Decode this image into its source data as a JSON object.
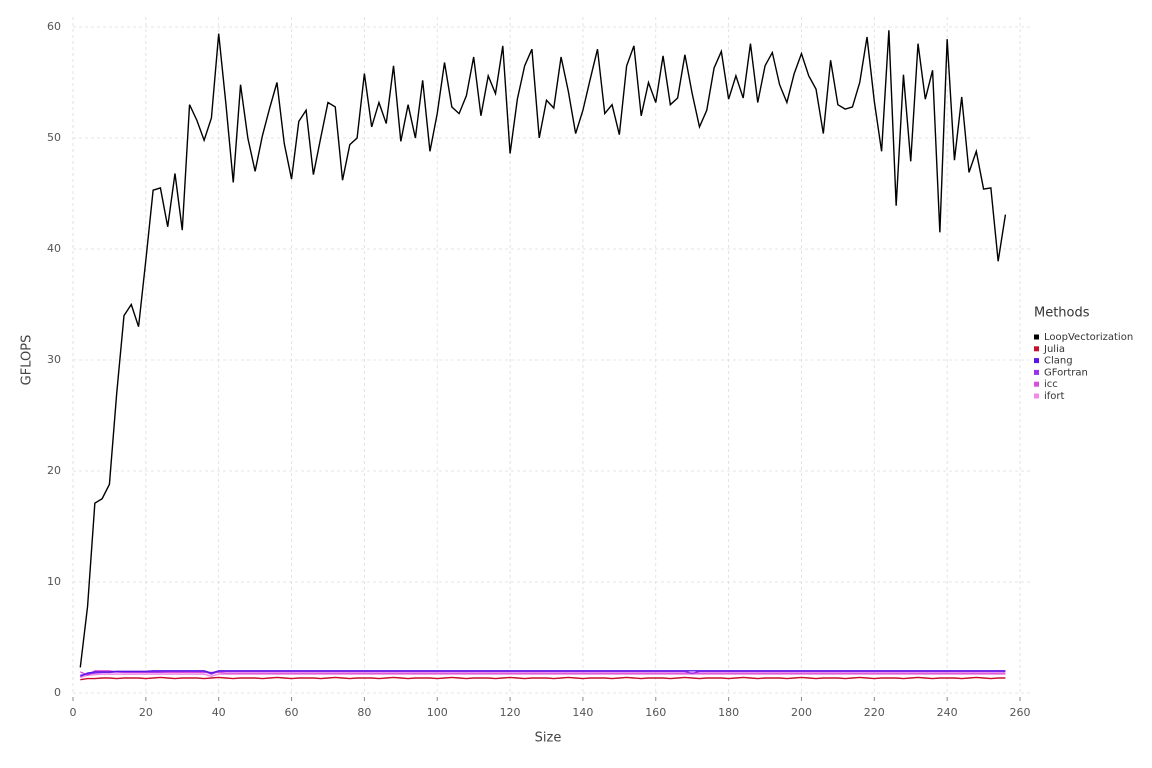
{
  "chart_data": {
    "type": "line",
    "x_label": "Size",
    "y_label": "GFLOPS",
    "legend_title": "Methods",
    "legend_position": "right",
    "grid": true,
    "xlim": [
      0,
      260
    ],
    "xticks": [
      0,
      20,
      40,
      60,
      80,
      100,
      120,
      140,
      160,
      180,
      200,
      220,
      240,
      260
    ],
    "ylim": [
      0,
      60
    ],
    "yticks": [
      0,
      10,
      20,
      30,
      40,
      50,
      60
    ],
    "x": [
      2,
      4,
      6,
      8,
      10,
      12,
      14,
      16,
      18,
      20,
      22,
      24,
      26,
      28,
      30,
      32,
      34,
      36,
      38,
      40,
      42,
      44,
      46,
      48,
      50,
      52,
      54,
      56,
      58,
      60,
      62,
      64,
      66,
      68,
      70,
      72,
      74,
      76,
      78,
      80,
      82,
      84,
      86,
      88,
      90,
      92,
      94,
      96,
      98,
      100,
      102,
      104,
      106,
      108,
      110,
      112,
      114,
      116,
      118,
      120,
      122,
      124,
      126,
      128,
      130,
      132,
      134,
      136,
      138,
      140,
      142,
      144,
      146,
      148,
      150,
      152,
      154,
      156,
      158,
      160,
      162,
      164,
      166,
      168,
      170,
      172,
      174,
      176,
      178,
      180,
      182,
      184,
      186,
      188,
      190,
      192,
      194,
      196,
      198,
      200,
      202,
      204,
      206,
      208,
      210,
      212,
      214,
      216,
      218,
      220,
      222,
      224,
      226,
      228,
      230,
      232,
      234,
      236,
      238,
      240,
      242,
      244,
      246,
      248,
      250,
      252,
      254,
      256
    ],
    "series": [
      {
        "name": "LoopVectorization",
        "color": "#000000",
        "values": [
          2.3,
          7.8,
          17.1,
          17.5,
          18.8,
          27,
          34,
          35,
          33,
          39,
          45.3,
          45.5,
          42,
          46.8,
          41.7,
          53,
          51.6,
          49.8,
          51.8,
          59.4,
          53,
          46,
          54.8,
          50,
          47,
          50.2,
          52.7,
          55,
          49.5,
          46.3,
          51.5,
          52.5,
          46.7,
          50,
          53.2,
          52.8,
          46.2,
          49.4,
          50,
          55.8,
          51,
          53.2,
          51.3,
          56.5,
          49.7,
          53,
          50,
          55.2,
          48.8,
          52.2,
          56.8,
          52.8,
          52.2,
          53.8,
          57.3,
          52,
          55.6,
          54,
          58.3,
          48.6,
          53.5,
          56.5,
          58,
          50,
          53.4,
          52.7,
          57.3,
          54.2,
          50.4,
          52.5,
          55.3,
          58,
          52.2,
          53,
          50.3,
          56.5,
          58.3,
          52,
          55,
          53.2,
          57.4,
          53,
          53.6,
          57.5,
          54,
          51,
          52.5,
          56.3,
          57.8,
          53.5,
          55.6,
          53.6,
          58.5,
          53.2,
          56.5,
          57.7,
          54.8,
          53.2,
          55.8,
          57.6,
          55.6,
          54.4,
          50.4,
          57,
          53,
          52.6,
          52.8,
          55,
          59.1,
          53.3,
          48.8,
          59.7,
          43.9,
          55.7,
          47.9,
          58.5,
          53.5,
          56.1,
          41.5,
          58.9,
          48,
          53.7,
          46.9,
          48.8,
          45.4,
          45.5,
          38.9,
          43.1
        ]
      },
      {
        "name": "Julia",
        "color": "#c8102e",
        "values": [
          1.2,
          1.3,
          1.3,
          1.35,
          1.35,
          1.3,
          1.35,
          1.35,
          1.35,
          1.3,
          1.35,
          1.4,
          1.35,
          1.3,
          1.35,
          1.35,
          1.35,
          1.3,
          1.35,
          1.4,
          1.35,
          1.3,
          1.35,
          1.35,
          1.35,
          1.3,
          1.35,
          1.4,
          1.35,
          1.3,
          1.35,
          1.35,
          1.35,
          1.3,
          1.35,
          1.4,
          1.35,
          1.3,
          1.35,
          1.35,
          1.35,
          1.3,
          1.35,
          1.4,
          1.35,
          1.3,
          1.35,
          1.35,
          1.35,
          1.3,
          1.35,
          1.4,
          1.35,
          1.3,
          1.35,
          1.35,
          1.35,
          1.3,
          1.35,
          1.4,
          1.35,
          1.3,
          1.35,
          1.35,
          1.35,
          1.3,
          1.35,
          1.4,
          1.35,
          1.3,
          1.35,
          1.35,
          1.35,
          1.3,
          1.35,
          1.4,
          1.35,
          1.3,
          1.35,
          1.35,
          1.35,
          1.3,
          1.35,
          1.4,
          1.35,
          1.3,
          1.35,
          1.35,
          1.35,
          1.3,
          1.35,
          1.4,
          1.35,
          1.3,
          1.35,
          1.35,
          1.35,
          1.3,
          1.35,
          1.4,
          1.35,
          1.3,
          1.35,
          1.35,
          1.35,
          1.3,
          1.35,
          1.4,
          1.35,
          1.3,
          1.35,
          1.35,
          1.35,
          1.3,
          1.35,
          1.4,
          1.35,
          1.3,
          1.35,
          1.35,
          1.35,
          1.3,
          1.35,
          1.4,
          1.35,
          1.3,
          1.35,
          1.35
        ]
      },
      {
        "name": "Clang",
        "color": "#5b16e6",
        "values": [
          1.5,
          1.8,
          1.9,
          1.9,
          1.9,
          1.95,
          1.95,
          1.95,
          1.95,
          1.95,
          2,
          2,
          2,
          2,
          2,
          2,
          2,
          2,
          1.8,
          2,
          2,
          2,
          2,
          2,
          2,
          2,
          2,
          2,
          2,
          2,
          2,
          2,
          2,
          2,
          2,
          2,
          2,
          2,
          2,
          2,
          2,
          2,
          2,
          2,
          2,
          2,
          2,
          2,
          2,
          2,
          2,
          2,
          2,
          2,
          2,
          2,
          2,
          2,
          2,
          2,
          2,
          2,
          2,
          2,
          2,
          2,
          2,
          2,
          2,
          2,
          2,
          2,
          2,
          2,
          2,
          2,
          2,
          2,
          2,
          2,
          2,
          2,
          2,
          2,
          2,
          2,
          2,
          2,
          2,
          2,
          2,
          2,
          2,
          2,
          2,
          2,
          2,
          2,
          2,
          2,
          2,
          2,
          2,
          2,
          2,
          2,
          2,
          2,
          2,
          2,
          2,
          2,
          2,
          2,
          2,
          2,
          2,
          2,
          2,
          2,
          2,
          2,
          2,
          2,
          2,
          2,
          2,
          2
        ]
      },
      {
        "name": "GFortran",
        "color": "#9a32f0",
        "values": [
          1.6,
          1.7,
          1.8,
          1.85,
          1.85,
          1.9,
          1.9,
          1.9,
          1.9,
          1.9,
          1.9,
          1.9,
          1.95,
          1.95,
          1.95,
          1.95,
          1.95,
          1.95,
          1.7,
          1.95,
          1.95,
          1.95,
          1.95,
          1.95,
          1.95,
          1.95,
          1.95,
          1.95,
          1.95,
          1.95,
          1.95,
          1.95,
          1.95,
          1.95,
          1.95,
          1.95,
          1.95,
          1.95,
          1.95,
          1.95,
          1.95,
          1.95,
          1.95,
          1.95,
          1.95,
          1.95,
          1.95,
          1.95,
          1.95,
          1.95,
          1.95,
          1.95,
          1.95,
          1.95,
          1.95,
          1.95,
          1.95,
          1.95,
          1.95,
          1.95,
          1.95,
          1.95,
          1.95,
          1.95,
          1.95,
          1.95,
          1.95,
          1.95,
          1.95,
          1.95,
          1.95,
          1.95,
          1.95,
          1.95,
          1.95,
          1.95,
          1.95,
          1.95,
          1.95,
          1.95,
          1.95,
          1.95,
          1.95,
          1.95,
          1.75,
          1.95,
          1.95,
          1.95,
          1.95,
          1.95,
          1.95,
          1.95,
          1.95,
          1.95,
          1.95,
          1.95,
          1.95,
          1.95,
          1.95,
          1.95,
          1.95,
          1.95,
          1.95,
          1.95,
          1.95,
          1.95,
          1.95,
          1.95,
          1.95,
          1.95,
          1.95,
          1.95,
          1.95,
          1.95,
          1.95,
          1.95,
          1.95,
          1.95,
          1.95,
          1.95,
          1.95,
          1.95,
          1.95,
          1.95,
          1.95,
          1.95,
          1.95,
          1.95
        ]
      },
      {
        "name": "icc",
        "color": "#d94fd9",
        "values": [
          1.9,
          1.6,
          2,
          2,
          2,
          1.9,
          1.85,
          1.85,
          1.85,
          1.85,
          1.85,
          1.85,
          1.85,
          1.85,
          1.85,
          1.85,
          1.85,
          1.85,
          1.85,
          1.85,
          1.8,
          1.8,
          1.8,
          1.8,
          1.8,
          1.8,
          1.8,
          1.8,
          1.8,
          1.8,
          1.8,
          1.8,
          1.8,
          1.8,
          1.8,
          1.8,
          1.8,
          1.8,
          1.8,
          1.8,
          1.8,
          1.8,
          1.8,
          1.8,
          1.8,
          1.8,
          1.8,
          1.8,
          1.8,
          1.8,
          1.8,
          1.8,
          1.8,
          1.8,
          1.8,
          1.8,
          1.8,
          1.8,
          1.8,
          1.8,
          1.8,
          1.8,
          1.8,
          1.8,
          1.8,
          1.8,
          1.8,
          1.8,
          1.8,
          1.8,
          1.8,
          1.8,
          1.8,
          1.8,
          1.8,
          1.8,
          1.8,
          1.8,
          1.8,
          1.8,
          1.8,
          1.8,
          1.8,
          1.8,
          1.8,
          1.8,
          1.8,
          1.8,
          1.8,
          1.8,
          1.8,
          1.8,
          1.8,
          1.8,
          1.8,
          1.8,
          1.8,
          1.8,
          1.8,
          1.8,
          1.8,
          1.8,
          1.8,
          1.8,
          1.8,
          1.8,
          1.8,
          1.8,
          1.8,
          1.8,
          1.8,
          1.8,
          1.8,
          1.8,
          1.8,
          1.8,
          1.8,
          1.8,
          1.8,
          1.8,
          1.8,
          1.8,
          1.8,
          1.8,
          1.8,
          1.8,
          1.8,
          1.8
        ]
      },
      {
        "name": "ifort",
        "color": "#f08ae6",
        "values": [
          1.4,
          1.6,
          1.65,
          1.7,
          1.7,
          1.7,
          1.7,
          1.7,
          1.7,
          1.7,
          1.7,
          1.7,
          1.7,
          1.7,
          1.7,
          1.7,
          1.7,
          1.7,
          1.5,
          1.7,
          1.7,
          1.7,
          1.7,
          1.7,
          1.7,
          1.7,
          1.7,
          1.7,
          1.7,
          1.7,
          1.7,
          1.7,
          1.7,
          1.7,
          1.7,
          1.7,
          1.7,
          1.7,
          1.7,
          1.7,
          1.7,
          1.7,
          1.7,
          1.7,
          1.7,
          1.7,
          1.7,
          1.7,
          1.7,
          1.7,
          1.7,
          1.7,
          1.7,
          1.7,
          1.7,
          1.7,
          1.7,
          1.7,
          1.7,
          1.7,
          1.7,
          1.7,
          1.7,
          1.7,
          1.7,
          1.7,
          1.7,
          1.7,
          1.7,
          1.7,
          1.7,
          1.7,
          1.7,
          1.7,
          1.7,
          1.7,
          1.7,
          1.7,
          1.7,
          1.7,
          1.7,
          1.7,
          1.7,
          1.7,
          1.7,
          1.7,
          1.7,
          1.7,
          1.7,
          1.7,
          1.7,
          1.7,
          1.7,
          1.7,
          1.7,
          1.7,
          1.7,
          1.7,
          1.7,
          1.7,
          1.7,
          1.7,
          1.7,
          1.7,
          1.7,
          1.7,
          1.7,
          1.7,
          1.7,
          1.7,
          1.7,
          1.7,
          1.7,
          1.7,
          1.7,
          1.7,
          1.7,
          1.7,
          1.7,
          1.7,
          1.7,
          1.7,
          1.7,
          1.7,
          1.7,
          1.7,
          1.7,
          1.7
        ]
      }
    ]
  }
}
